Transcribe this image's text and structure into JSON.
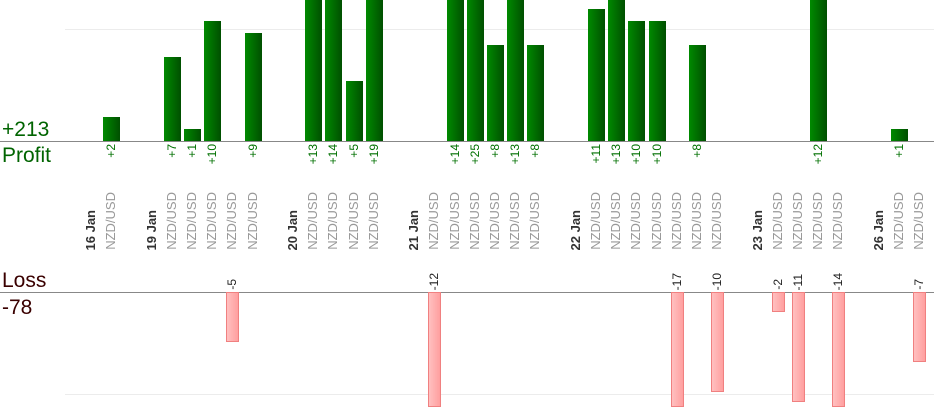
{
  "chart_data": {
    "type": "bar",
    "profit_label": "Profit",
    "profit_total": "+213",
    "loss_label": "Loss",
    "loss_total": "-78",
    "colors": {
      "profit": "#006400",
      "loss": "#ffa8a8",
      "profit_text": "#007000",
      "loss_text": "#3a0000"
    },
    "groups": [
      {
        "date": "16 Jan",
        "trades": [
          {
            "pair": "NZD/USD",
            "result": 2
          }
        ]
      },
      {
        "date": "19 Jan",
        "trades": [
          {
            "pair": "NZD/USD",
            "result": 7
          },
          {
            "pair": "NZD/USD",
            "result": 1
          },
          {
            "pair": "NZD/USD",
            "result": 10
          },
          {
            "pair": "NZD/USD",
            "result": -5
          },
          {
            "pair": "NZD/USD",
            "result": 9
          }
        ]
      },
      {
        "date": "20 Jan",
        "trades": [
          {
            "pair": "NZD/USD",
            "result": 13
          },
          {
            "pair": "NZD/USD",
            "result": 14
          },
          {
            "pair": "NZD/USD",
            "result": 5
          },
          {
            "pair": "NZD/USD",
            "result": 19
          }
        ]
      },
      {
        "date": "21 Jan",
        "trades": [
          {
            "pair": "NZD/USD",
            "result": -12
          },
          {
            "pair": "NZD/USD",
            "result": 14
          },
          {
            "pair": "NZD/USD",
            "result": 25
          },
          {
            "pair": "NZD/USD",
            "result": 8
          },
          {
            "pair": "NZD/USD",
            "result": 13
          },
          {
            "pair": "NZD/USD",
            "result": 8
          }
        ]
      },
      {
        "date": "22 Jan",
        "trades": [
          {
            "pair": "NZD/USD",
            "result": 11
          },
          {
            "pair": "NZD/USD",
            "result": 13
          },
          {
            "pair": "NZD/USD",
            "result": 10
          },
          {
            "pair": "NZD/USD",
            "result": 10
          },
          {
            "pair": "NZD/USD",
            "result": -17
          },
          {
            "pair": "NZD/USD",
            "result": 8
          },
          {
            "pair": "NZD/USD",
            "result": -10
          }
        ]
      },
      {
        "date": "23 Jan",
        "trades": [
          {
            "pair": "NZD/USD",
            "result": -2
          },
          {
            "pair": "NZD/USD",
            "result": -11
          },
          {
            "pair": "NZD/USD",
            "result": 12
          },
          {
            "pair": "NZD/USD",
            "result": -14
          }
        ]
      },
      {
        "date": "26 Jan",
        "trades": [
          {
            "pair": "NZD/USD",
            "result": 1
          },
          {
            "pair": "NZD/USD",
            "result": -7
          }
        ]
      }
    ]
  }
}
